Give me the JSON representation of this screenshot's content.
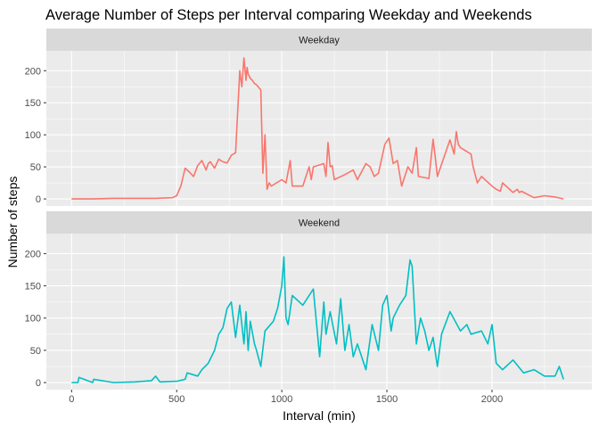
{
  "chart_data": {
    "type": "line",
    "title": "Average Number of Steps per Interval comparing Weekday and Weekends",
    "xlabel": "Interval (min)",
    "ylabel": "Number of steps",
    "xlim": [
      -120,
      2475
    ],
    "ylim": [
      -11,
      231
    ],
    "x_ticks": [
      0,
      500,
      1000,
      1500,
      2000
    ],
    "y_ticks": [
      0,
      50,
      100,
      150,
      200
    ],
    "grid": true,
    "legend": "none",
    "panels": [
      {
        "strip_label": "Weekday",
        "color": "#F8766D",
        "x": [
          0,
          100,
          200,
          300,
          400,
          480,
          500,
          520,
          540,
          560,
          580,
          600,
          620,
          640,
          650,
          660,
          680,
          700,
          720,
          740,
          760,
          780,
          800,
          810,
          820,
          830,
          835,
          840,
          850,
          860,
          870,
          880,
          900,
          910,
          920,
          930,
          940,
          950,
          1000,
          1020,
          1040,
          1050,
          1100,
          1130,
          1140,
          1150,
          1200,
          1210,
          1220,
          1230,
          1240,
          1250,
          1300,
          1340,
          1360,
          1400,
          1420,
          1440,
          1460,
          1490,
          1510,
          1530,
          1550,
          1570,
          1600,
          1620,
          1640,
          1650,
          1700,
          1720,
          1730,
          1740,
          1800,
          1820,
          1830,
          1840,
          1850,
          1900,
          1910,
          1930,
          1950,
          2000,
          2020,
          2040,
          2050,
          2100,
          2120,
          2130,
          2140,
          2200,
          2250,
          2300,
          2340
        ],
        "y": [
          0,
          0,
          1,
          1,
          1,
          2,
          5,
          20,
          48,
          42,
          35,
          52,
          60,
          45,
          55,
          58,
          48,
          62,
          58,
          56,
          68,
          72,
          200,
          175,
          220,
          185,
          205,
          195,
          188,
          185,
          180,
          178,
          170,
          40,
          100,
          15,
          25,
          20,
          30,
          25,
          60,
          20,
          20,
          50,
          30,
          50,
          55,
          35,
          88,
          50,
          52,
          30,
          38,
          45,
          30,
          55,
          50,
          35,
          40,
          85,
          95,
          55,
          60,
          20,
          50,
          40,
          80,
          35,
          32,
          93,
          65,
          35,
          92,
          70,
          105,
          85,
          80,
          70,
          50,
          25,
          35,
          20,
          15,
          12,
          25,
          10,
          15,
          10,
          12,
          2,
          5,
          3,
          0
        ]
      },
      {
        "strip_label": "Weekend",
        "color": "#00BFC4",
        "x": [
          0,
          30,
          35,
          100,
          105,
          200,
          300,
          380,
          400,
          420,
          500,
          540,
          550,
          600,
          620,
          650,
          680,
          700,
          720,
          740,
          760,
          780,
          800,
          810,
          820,
          830,
          840,
          850,
          870,
          880,
          900,
          920,
          960,
          980,
          1000,
          1010,
          1020,
          1030,
          1050,
          1100,
          1150,
          1180,
          1200,
          1210,
          1230,
          1260,
          1280,
          1300,
          1320,
          1340,
          1360,
          1400,
          1430,
          1460,
          1480,
          1500,
          1520,
          1530,
          1560,
          1590,
          1610,
          1620,
          1640,
          1660,
          1680,
          1700,
          1720,
          1740,
          1760,
          1800,
          1850,
          1880,
          1900,
          1950,
          1980,
          2000,
          2020,
          2050,
          2100,
          2150,
          2200,
          2250,
          2300,
          2320,
          2340
        ],
        "y": [
          0,
          0,
          8,
          0,
          5,
          0,
          1,
          3,
          10,
          1,
          2,
          5,
          15,
          10,
          20,
          30,
          50,
          75,
          85,
          115,
          125,
          70,
          120,
          90,
          60,
          110,
          50,
          95,
          60,
          50,
          25,
          80,
          95,
          115,
          150,
          195,
          100,
          90,
          135,
          120,
          145,
          40,
          125,
          75,
          110,
          60,
          130,
          50,
          90,
          40,
          60,
          20,
          90,
          50,
          120,
          135,
          80,
          100,
          120,
          135,
          190,
          180,
          60,
          100,
          80,
          50,
          70,
          25,
          75,
          110,
          80,
          90,
          75,
          80,
          60,
          90,
          30,
          20,
          35,
          15,
          20,
          10,
          10,
          25,
          5
        ]
      }
    ]
  }
}
